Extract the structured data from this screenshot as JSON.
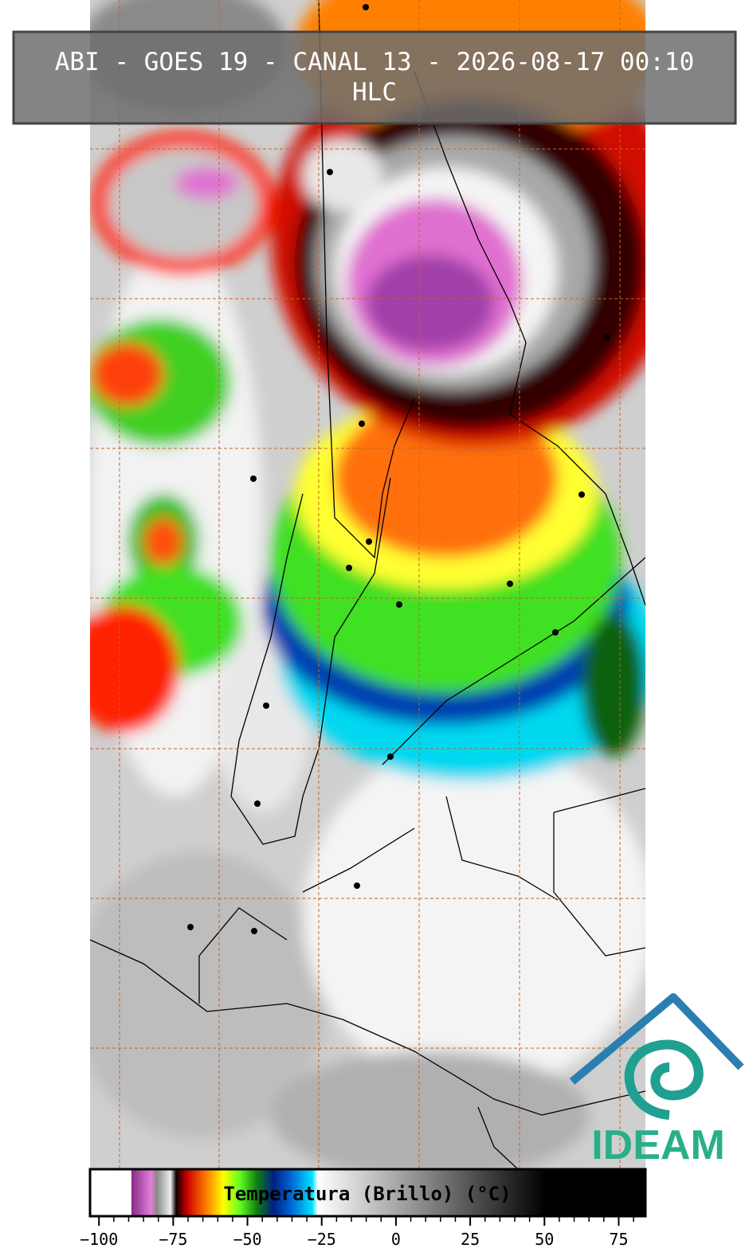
{
  "header": {
    "title": "ABI - GOES 19 - CANAL 13 - 2026-08-17 00:10",
    "subtitle": "HLC"
  },
  "colorbar": {
    "label": "Temperatura (Brillo) (°C)",
    "range": [
      -103,
      84
    ],
    "ticks": [
      {
        "value": -100,
        "label": "−100"
      },
      {
        "value": -75,
        "label": "−75"
      },
      {
        "value": -50,
        "label": "−50"
      },
      {
        "value": -25,
        "label": "−25"
      },
      0,
      25,
      50,
      75
    ]
  },
  "logo": {
    "text": "IDEAM"
  }
}
